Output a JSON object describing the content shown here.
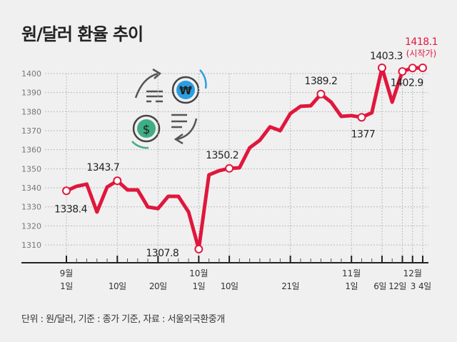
{
  "title": "원/달러 환율 추이",
  "footer": "단위 : 원/달러, 기준 : 종가 기준, 자료 : 서울외국환중개",
  "colors": {
    "line": "#e0173d",
    "highlight": "#e0173d",
    "won_icon": "#2a9ee0",
    "dollar_icon": "#3fae85"
  },
  "icons": [
    "won-coin-icon",
    "dollar-coin-icon",
    "exchange-arrows-icon"
  ],
  "chart_data": {
    "type": "line",
    "title": "원/달러 환율 추이",
    "ylim": [
      1305,
      1405
    ],
    "yticks": [
      1310,
      1320,
      1330,
      1340,
      1350,
      1360,
      1370,
      1380,
      1390,
      1400
    ],
    "grid": true,
    "values": [
      1338.4,
      1340.8,
      1341.9,
      1327.3,
      1340.4,
      1343.7,
      1338.9,
      1338.9,
      1329.9,
      1329.1,
      1335.5,
      1335.5,
      1327.3,
      1307.8,
      1346.8,
      1349.0,
      1350.2,
      1350.5,
      1361.0,
      1365.0,
      1372.0,
      1370.0,
      1379.0,
      1382.8,
      1383.1,
      1389.2,
      1385.0,
      1377.5,
      1377.9,
      1377.0,
      1379.4,
      1403.3,
      1385.0,
      1401.1,
      1402.9,
      1418.1
    ],
    "xticks": [
      {
        "index": 0,
        "month": "9월",
        "day": "1일"
      },
      {
        "index": 5,
        "month": "",
        "day": "10일"
      },
      {
        "index": 9,
        "month": "",
        "day": "20일"
      },
      {
        "index": 13,
        "month": "10월",
        "day": "1일"
      },
      {
        "index": 16,
        "month": "",
        "day": "10일"
      },
      {
        "index": 22,
        "month": "",
        "day": "21일"
      },
      {
        "index": 28,
        "month": "11월",
        "day": "1일"
      },
      {
        "index": 31,
        "month": "",
        "day": "6일"
      },
      {
        "index": 33,
        "month": "",
        "day": "12일"
      },
      {
        "index": 34,
        "month": "12월",
        "day": "3"
      },
      {
        "index": 35,
        "month": "",
        "day": "4일"
      }
    ],
    "markers": [
      0,
      5,
      13,
      16,
      25,
      29,
      31,
      33,
      34,
      35
    ],
    "annotations": [
      {
        "index": 0,
        "text": "1338.4"
      },
      {
        "index": 5,
        "text": "1343.7"
      },
      {
        "index": 13,
        "text": "1307.8"
      },
      {
        "index": 16,
        "text": "1350.2"
      },
      {
        "index": 25,
        "text": "1389.2"
      },
      {
        "index": 29,
        "text": "1377"
      },
      {
        "index": 31,
        "text": "1403.3"
      },
      {
        "index": 34,
        "text": "1402.9"
      },
      {
        "index": 35,
        "text": "1418.1",
        "note": "(시작가)",
        "highlight": true
      }
    ]
  }
}
